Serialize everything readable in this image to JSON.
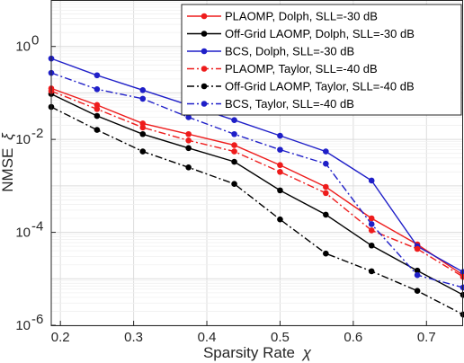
{
  "chart_data": {
    "type": "line",
    "xlabel_text": "Sparsity Rate",
    "xlabel_symbol": "χ",
    "ylabel_text": "NMSE",
    "ylabel_symbol": "ξ",
    "y_scale": "log",
    "xlim": [
      0.1875,
      0.75
    ],
    "ylim": [
      1e-06,
      10
    ],
    "grid": true,
    "legend_position": "top-right",
    "x_ticks": [
      {
        "value": 0.2,
        "label": "0.2"
      },
      {
        "value": 0.3,
        "label": "0.3"
      },
      {
        "value": 0.4,
        "label": "0.4"
      },
      {
        "value": 0.5,
        "label": "0.5"
      },
      {
        "value": 0.6,
        "label": "0.6"
      },
      {
        "value": 0.7,
        "label": "0.7"
      }
    ],
    "y_ticks": [
      {
        "value": 1e-06,
        "base": "10",
        "exp": "-6"
      },
      {
        "value": 0.0001,
        "base": "10",
        "exp": "-4"
      },
      {
        "value": 0.01,
        "base": "10",
        "exp": "-2"
      },
      {
        "value": 1,
        "base": "10",
        "exp": "0"
      }
    ],
    "x": [
      0.1875,
      0.25,
      0.3125,
      0.375,
      0.4375,
      0.5,
      0.5625,
      0.625,
      0.6875,
      0.75
    ],
    "series": [
      {
        "name": "PLAOMP, Dolph, SLL=-30 dB",
        "color": "#ee1c1c",
        "dash": "solid",
        "values": [
          0.125,
          0.055,
          0.022,
          0.013,
          0.0075,
          0.0028,
          0.00095,
          0.0002,
          5.5e-05,
          1.2e-05
        ]
      },
      {
        "name": "Off-Grid LAOMP, Dolph, SLL=-30 dB",
        "color": "#000000",
        "dash": "solid",
        "values": [
          0.095,
          0.032,
          0.013,
          0.0065,
          0.0033,
          0.0008,
          0.00024,
          5.2e-05,
          1.5e-05,
          4.5e-06
        ]
      },
      {
        "name": "BCS, Dolph, SLL=-30 dB",
        "color": "#1f1fc8",
        "dash": "solid",
        "values": [
          0.55,
          0.24,
          0.115,
          0.055,
          0.026,
          0.012,
          0.0055,
          0.0013,
          5e-05,
          1.4e-05
        ]
      },
      {
        "name": "PLAOMP, Taylor, SLL=-40 dB",
        "color": "#ee1c1c",
        "dash": "dashdot",
        "values": [
          0.11,
          0.045,
          0.018,
          0.0095,
          0.0055,
          0.002,
          0.0007,
          0.00011,
          4.4e-05,
          1.1e-05
        ]
      },
      {
        "name": "Off-Grid LAOMP, Taylor, SLL=-40 dB",
        "color": "#000000",
        "dash": "dashdot",
        "values": [
          0.05,
          0.016,
          0.0055,
          0.0025,
          0.0011,
          0.00019,
          3.5e-05,
          1.45e-05,
          5.5e-06,
          1.7e-06
        ]
      },
      {
        "name": "BCS, Taylor, SLL=-40 dB",
        "color": "#1f1fc8",
        "dash": "dashdot",
        "values": [
          0.27,
          0.12,
          0.075,
          0.03,
          0.013,
          0.006,
          0.003,
          0.00015,
          1.2e-05,
          6.5e-06
        ]
      }
    ]
  }
}
